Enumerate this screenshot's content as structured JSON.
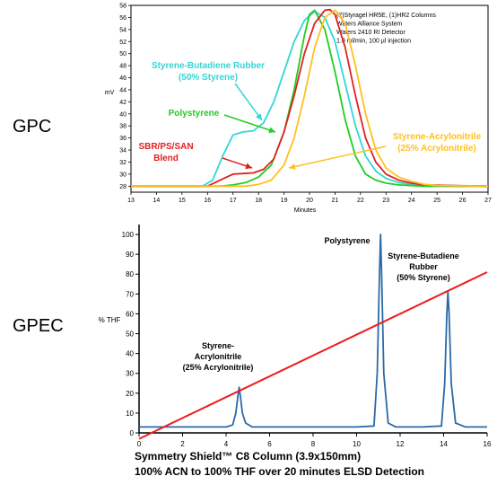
{
  "labels": {
    "gpc": "GPC",
    "gpec": "GPEC"
  },
  "chart_data": [
    {
      "type": "line",
      "ylabel": "mV",
      "xlabel": "Minutes",
      "xlim": [
        13,
        27
      ],
      "ylim": [
        27,
        58
      ],
      "xticks": [
        13,
        14,
        15,
        16,
        17,
        18,
        19,
        20,
        21,
        22,
        23,
        24,
        25,
        26,
        27
      ],
      "yticks": [
        28,
        30,
        32,
        34,
        36,
        38,
        40,
        42,
        44,
        46,
        48,
        50,
        52,
        54,
        56,
        58
      ],
      "grid": false,
      "legend": "none",
      "info_box": [
        "(2)Styragel HR5E, (1)HR2 Columns",
        "Waters Alliance System",
        "Waters 2410 RI Detector",
        "1.0 ml/min, 100 µl injection"
      ],
      "series": [
        {
          "name": "Styrene-Butadiene Rubber (50% Styrene)",
          "color": "#33d6d6",
          "x": [
            13,
            15.8,
            16.2,
            16.6,
            17,
            17.4,
            17.8,
            18.2,
            18.6,
            19,
            19.4,
            19.8,
            20.2,
            20.6,
            21,
            21.4,
            21.8,
            22.2,
            22.6,
            23,
            23.5,
            24,
            24.5,
            25,
            27
          ],
          "y": [
            28,
            28,
            29,
            33,
            36.5,
            37,
            37.2,
            38.5,
            42,
            47,
            52,
            55.5,
            57,
            56,
            52,
            45,
            38,
            33,
            30.5,
            29.3,
            28.6,
            28.3,
            28.1,
            28,
            28
          ]
        },
        {
          "name": "Polystyrene",
          "color": "#22cc22",
          "x": [
            13,
            16.5,
            17,
            17.5,
            18,
            18.5,
            19,
            19.4,
            19.8,
            20,
            20.2,
            20.6,
            21,
            21.4,
            21.8,
            22.2,
            22.6,
            23,
            23.5,
            24,
            24.5,
            27
          ],
          "y": [
            28,
            28,
            28.2,
            28.6,
            29.5,
            31.5,
            37,
            44,
            53,
            56.5,
            57.2,
            54,
            47,
            39,
            33,
            30,
            29,
            28.5,
            28.2,
            28.1,
            28,
            28
          ]
        },
        {
          "name": "SBR/PS/SAN Blend",
          "color": "#e02020",
          "x": [
            13,
            16,
            16.6,
            17,
            17.4,
            17.8,
            18.2,
            18.6,
            19,
            19.4,
            19.8,
            20.2,
            20.6,
            20.8,
            21,
            21.4,
            21.8,
            22.2,
            22.6,
            23,
            23.5,
            24,
            24.5,
            27
          ],
          "y": [
            28,
            28,
            29.2,
            30,
            30.1,
            30.2,
            30.8,
            32.5,
            37,
            43,
            50,
            55,
            57.2,
            57.3,
            56.5,
            51,
            43,
            36,
            32,
            30,
            29,
            28.5,
            28.2,
            28
          ]
        },
        {
          "name": "Styrene-Acrylonitrile (25% Acrylonitrile)",
          "color": "#ffc020",
          "x": [
            13,
            17.5,
            18,
            18.5,
            19,
            19.4,
            19.8,
            20.2,
            20.6,
            21,
            21.4,
            21.8,
            22.2,
            22.6,
            23,
            23.5,
            24,
            24.5,
            25,
            27
          ],
          "y": [
            28,
            28,
            28.3,
            29,
            31.5,
            36,
            43,
            51,
            56,
            57.2,
            55,
            48,
            40,
            34,
            31,
            29.5,
            28.8,
            28.3,
            28.1,
            28
          ]
        }
      ],
      "annotations": [
        {
          "text": [
            "Styrene-Butadiene Rubber",
            "(50% Styrene)"
          ],
          "color": "#33d6d6"
        },
        {
          "text": [
            "Polystyrene"
          ],
          "color": "#22cc22"
        },
        {
          "text": [
            "SBR/PS/SAN",
            "Blend"
          ],
          "color": "#e02020"
        },
        {
          "text": [
            "Styrene-Acrylonitrile",
            "(25% Acrylonitrile)"
          ],
          "color": "#ffc020"
        }
      ]
    },
    {
      "type": "line",
      "ylabel": "% THF",
      "xlim": [
        0,
        16
      ],
      "ylim": [
        0,
        105
      ],
      "xticks": [
        0,
        2,
        4,
        6,
        8,
        10,
        12,
        14,
        16
      ],
      "yticks": [
        0,
        10,
        20,
        30,
        40,
        50,
        60,
        70,
        80,
        90,
        100
      ],
      "grid": false,
      "legend": "none",
      "series": [
        {
          "name": "ELSD trace",
          "color": "#2a6aa8",
          "x": [
            0,
            2,
            4,
            4.3,
            4.45,
            4.55,
            4.6,
            4.65,
            4.75,
            4.9,
            5.2,
            6,
            8,
            10,
            10.8,
            10.95,
            11.05,
            11.1,
            11.15,
            11.25,
            11.45,
            11.8,
            13,
            13.9,
            14.05,
            14.15,
            14.2,
            14.25,
            14.35,
            14.55,
            15,
            16
          ],
          "y": [
            3,
            3,
            3,
            4,
            10,
            19,
            23,
            19,
            10,
            5,
            3,
            3,
            3,
            3,
            3.5,
            30,
            80,
            100,
            80,
            30,
            5,
            3,
            3,
            3.5,
            25,
            60,
            71,
            60,
            25,
            5,
            3,
            3
          ]
        },
        {
          "name": "% THF gradient",
          "color": "#ee1c1c",
          "x": [
            0,
            16
          ],
          "y": [
            -3,
            81
          ]
        }
      ],
      "annotations": [
        {
          "text": [
            "Styrene-",
            "Acrylonitrile",
            "(25% Acrylonitrile)"
          ]
        },
        {
          "text": [
            "Polystyrene"
          ]
        },
        {
          "text": [
            "Styrene-Butadiene",
            "Rubber",
            "(50% Styrene)"
          ]
        }
      ],
      "caption": [
        "Symmetry Shield™ C8 Column (3.9x150mm)",
        "100% ACN to 100% THF over 20 minutes ELSD Detection"
      ]
    }
  ]
}
